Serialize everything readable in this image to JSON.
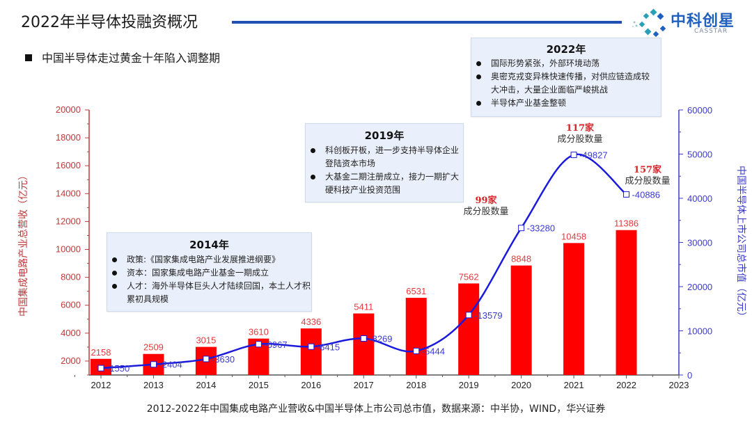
{
  "header": {
    "title": "2022年半导体投融资概况",
    "logo_name": "中科创星",
    "logo_sub": "CASSTAR",
    "accent_color": "#1f4fb3"
  },
  "subtitle": "中国半导体走过黄金十年陷入调整期",
  "boxes": [
    {
      "title": "2014年",
      "items": [
        "政策:《国家集成电路产业发展推进纲要》",
        "资本：国家集成电路产业基金一期成立",
        "人才：海外半导体巨头人才陆续回国，本土人才积累初具规模"
      ]
    },
    {
      "title": "2019年",
      "items": [
        "科创板开板，进一步支持半导体企业登陆资本市场",
        "大基金二期注册成立，接力一期扩大硬科技产业投资范围"
      ]
    },
    {
      "title": "2022年",
      "items": [
        "国际形势紧张，外部环境动荡",
        "奥密克戎变异株快速传播，对供应链造成较大冲击，大量企业面临严峻挑战",
        "半导体产业基金整顿"
      ]
    }
  ],
  "caption": "2012-2022年中国集成电路产业营收&中国半导体上市公司总市值，数据来源：中半协，WIND，华兴证券",
  "chart_data": {
    "type": "bar+line",
    "categories": [
      "2012",
      "2013",
      "2014",
      "2015",
      "2016",
      "2017",
      "2018",
      "2019",
      "2020",
      "2021",
      "2022"
    ],
    "x_ticks": [
      "2012",
      "2013",
      "2014",
      "2015",
      "2016",
      "2017",
      "2018",
      "2019",
      "2020",
      "2021",
      "2022",
      "2023"
    ],
    "series": [
      {
        "name": "中国集成电路产业总营收（亿元）",
        "type": "bar",
        "axis": "left",
        "color": "#ff0000",
        "label_color": "#e8383d",
        "values": [
          2158,
          2509,
          3015,
          3610,
          4336,
          5411,
          6531,
          7562,
          8848,
          10458,
          11386
        ]
      },
      {
        "name": "中国半导体上市公司总市值（亿元）",
        "type": "line",
        "axis": "right",
        "color": "#1a1adc",
        "label_color": "#3a3ad0",
        "values": [
          1550,
          2404,
          3630,
          6967,
          6415,
          8269,
          5444,
          13579,
          33280,
          49827,
          40886
        ]
      }
    ],
    "ylabel_left": "中国集成电路产业总营收（亿元）",
    "ylabel_right": "中国半导体上市公司总市值（亿元）",
    "ylim_left": [
      1000,
      20000
    ],
    "ylim_right": [
      0,
      60000
    ],
    "xlim": [
      2011.5,
      2023
    ],
    "left_ticks": [
      "2000",
      "4000",
      "6000",
      "8000",
      "10000",
      "12000",
      "14000",
      "16000",
      "18000",
      "20000"
    ],
    "right_ticks": [
      "0",
      "10000",
      "20000",
      "30000",
      "40000",
      "50000",
      "60000"
    ],
    "annotations": [
      {
        "year": 2019,
        "count": "99家",
        "text": "成分股数量"
      },
      {
        "year": 2021,
        "count": "117家",
        "text": "成分股数量"
      },
      {
        "year": 2022,
        "count": "157家",
        "text": "成分股数量"
      }
    ],
    "left_axis_color": "#c0393b",
    "right_axis_color": "#3b3bc8",
    "grid": false
  }
}
